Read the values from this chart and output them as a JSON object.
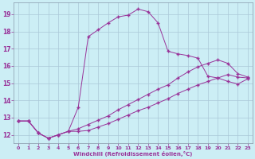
{
  "xlabel": "Windchill (Refroidissement éolien,°C)",
  "bg_color": "#cceef5",
  "grid_color": "#aac8d8",
  "line_color": "#993399",
  "xlim": [
    -0.5,
    23.5
  ],
  "ylim": [
    11.5,
    19.7
  ],
  "yticks": [
    12,
    13,
    14,
    15,
    16,
    17,
    18,
    19
  ],
  "xticks": [
    0,
    1,
    2,
    3,
    4,
    5,
    6,
    7,
    8,
    9,
    10,
    11,
    12,
    13,
    14,
    15,
    16,
    17,
    18,
    19,
    20,
    21,
    22,
    23
  ],
  "series1_x": [
    0,
    1,
    2,
    3,
    4,
    5,
    6,
    7,
    8,
    9,
    10,
    11,
    12,
    13,
    14,
    15,
    16,
    17,
    18,
    19,
    20,
    21,
    22,
    23
  ],
  "series1_y": [
    12.8,
    12.8,
    12.1,
    11.8,
    12.0,
    12.2,
    13.6,
    17.7,
    18.1,
    18.5,
    18.85,
    18.95,
    19.3,
    19.15,
    18.5,
    16.85,
    16.7,
    16.6,
    16.45,
    15.4,
    15.3,
    15.5,
    15.35,
    15.3
  ],
  "series2_x": [
    0,
    1,
    2,
    3,
    4,
    5,
    6,
    7,
    8,
    9,
    10,
    11,
    12,
    13,
    14,
    15,
    16,
    17,
    18,
    19,
    20,
    21,
    22,
    23
  ],
  "series2_y": [
    12.8,
    12.8,
    12.1,
    11.8,
    12.0,
    12.2,
    12.35,
    12.6,
    12.85,
    13.1,
    13.45,
    13.75,
    14.05,
    14.35,
    14.65,
    14.9,
    15.3,
    15.65,
    15.95,
    16.15,
    16.35,
    16.15,
    15.55,
    15.35
  ],
  "series3_x": [
    0,
    1,
    2,
    3,
    4,
    5,
    6,
    7,
    8,
    9,
    10,
    11,
    12,
    13,
    14,
    15,
    16,
    17,
    18,
    19,
    20,
    21,
    22,
    23
  ],
  "series3_y": [
    12.8,
    12.8,
    12.1,
    11.8,
    12.0,
    12.2,
    12.2,
    12.25,
    12.45,
    12.65,
    12.9,
    13.15,
    13.4,
    13.6,
    13.85,
    14.1,
    14.4,
    14.65,
    14.9,
    15.1,
    15.3,
    15.1,
    14.95,
    15.25
  ]
}
